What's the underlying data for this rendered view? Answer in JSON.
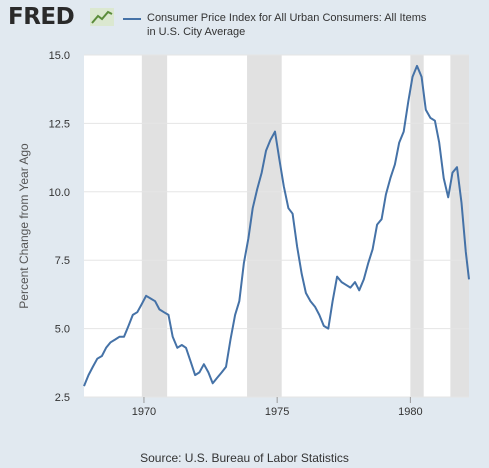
{
  "header": {
    "logo_text": "FRED",
    "logo_icon": "line-chart-icon"
  },
  "source": "Source: U.S. Bureau of Labor Statistics",
  "colors": {
    "background": "#e1e9f0",
    "plot_background": "#ffffff",
    "line": "#4572a7",
    "recession": "#e1e1e1",
    "grid": "#e5e5e5"
  },
  "chart_data": {
    "type": "line",
    "title": "",
    "xlabel": "",
    "ylabel": "Percent Change from Year Ago",
    "xlim": [
      1967.75,
      1982.2
    ],
    "ylim": [
      2.5,
      15.0
    ],
    "yticks": [
      2.5,
      5.0,
      7.5,
      10.0,
      12.5,
      15.0
    ],
    "ytick_labels": [
      "2.5",
      "5.0",
      "7.5",
      "10.0",
      "12.5",
      "15.0"
    ],
    "xticks": [
      1970,
      1975,
      1980
    ],
    "xtick_labels": [
      "1970",
      "1975",
      "1980"
    ],
    "grid": true,
    "legend_position": "top",
    "recessions": [
      [
        1969.92,
        1970.87
      ],
      [
        1973.87,
        1975.17
      ],
      [
        1980.0,
        1980.5
      ],
      [
        1981.5,
        1982.2
      ]
    ],
    "series": [
      {
        "name": "Consumer Price Index for All Urban Consumers: All Items in U.S. City Average",
        "points": [
          [
            1967.75,
            2.9
          ],
          [
            1967.92,
            3.3
          ],
          [
            1968.08,
            3.6
          ],
          [
            1968.25,
            3.9
          ],
          [
            1968.42,
            4.0
          ],
          [
            1968.58,
            4.3
          ],
          [
            1968.75,
            4.5
          ],
          [
            1968.92,
            4.6
          ],
          [
            1969.08,
            4.7
          ],
          [
            1969.25,
            4.7
          ],
          [
            1969.42,
            5.1
          ],
          [
            1969.58,
            5.5
          ],
          [
            1969.75,
            5.6
          ],
          [
            1969.92,
            5.9
          ],
          [
            1970.08,
            6.2
          ],
          [
            1970.25,
            6.1
          ],
          [
            1970.42,
            6.0
          ],
          [
            1970.58,
            5.7
          ],
          [
            1970.75,
            5.6
          ],
          [
            1970.92,
            5.5
          ],
          [
            1971.08,
            4.7
          ],
          [
            1971.25,
            4.3
          ],
          [
            1971.42,
            4.4
          ],
          [
            1971.58,
            4.3
          ],
          [
            1971.75,
            3.8
          ],
          [
            1971.92,
            3.3
          ],
          [
            1972.08,
            3.4
          ],
          [
            1972.25,
            3.7
          ],
          [
            1972.42,
            3.4
          ],
          [
            1972.58,
            3.0
          ],
          [
            1972.75,
            3.2
          ],
          [
            1972.92,
            3.4
          ],
          [
            1973.08,
            3.6
          ],
          [
            1973.25,
            4.6
          ],
          [
            1973.42,
            5.5
          ],
          [
            1973.58,
            6.0
          ],
          [
            1973.75,
            7.4
          ],
          [
            1973.92,
            8.3
          ],
          [
            1974.08,
            9.4
          ],
          [
            1974.25,
            10.1
          ],
          [
            1974.42,
            10.7
          ],
          [
            1974.58,
            11.5
          ],
          [
            1974.75,
            11.9
          ],
          [
            1974.92,
            12.2
          ],
          [
            1975.08,
            11.2
          ],
          [
            1975.25,
            10.2
          ],
          [
            1975.42,
            9.4
          ],
          [
            1975.58,
            9.2
          ],
          [
            1975.75,
            8.0
          ],
          [
            1975.92,
            7.0
          ],
          [
            1976.08,
            6.3
          ],
          [
            1976.25,
            6.0
          ],
          [
            1976.42,
            5.8
          ],
          [
            1976.58,
            5.5
          ],
          [
            1976.75,
            5.1
          ],
          [
            1976.92,
            5.0
          ],
          [
            1977.08,
            6.0
          ],
          [
            1977.25,
            6.9
          ],
          [
            1977.42,
            6.7
          ],
          [
            1977.58,
            6.6
          ],
          [
            1977.75,
            6.5
          ],
          [
            1977.92,
            6.7
          ],
          [
            1978.08,
            6.4
          ],
          [
            1978.25,
            6.8
          ],
          [
            1978.42,
            7.4
          ],
          [
            1978.58,
            7.9
          ],
          [
            1978.75,
            8.8
          ],
          [
            1978.92,
            9.0
          ],
          [
            1979.08,
            9.9
          ],
          [
            1979.25,
            10.5
          ],
          [
            1979.42,
            11.0
          ],
          [
            1979.58,
            11.8
          ],
          [
            1979.75,
            12.2
          ],
          [
            1979.92,
            13.3
          ],
          [
            1980.08,
            14.2
          ],
          [
            1980.25,
            14.6
          ],
          [
            1980.42,
            14.2
          ],
          [
            1980.58,
            13.0
          ],
          [
            1980.75,
            12.7
          ],
          [
            1980.92,
            12.6
          ],
          [
            1981.08,
            11.8
          ],
          [
            1981.25,
            10.5
          ],
          [
            1981.42,
            9.8
          ],
          [
            1981.58,
            10.7
          ],
          [
            1981.75,
            10.9
          ],
          [
            1981.92,
            9.6
          ],
          [
            1982.08,
            7.8
          ],
          [
            1982.2,
            6.8
          ]
        ]
      }
    ]
  }
}
